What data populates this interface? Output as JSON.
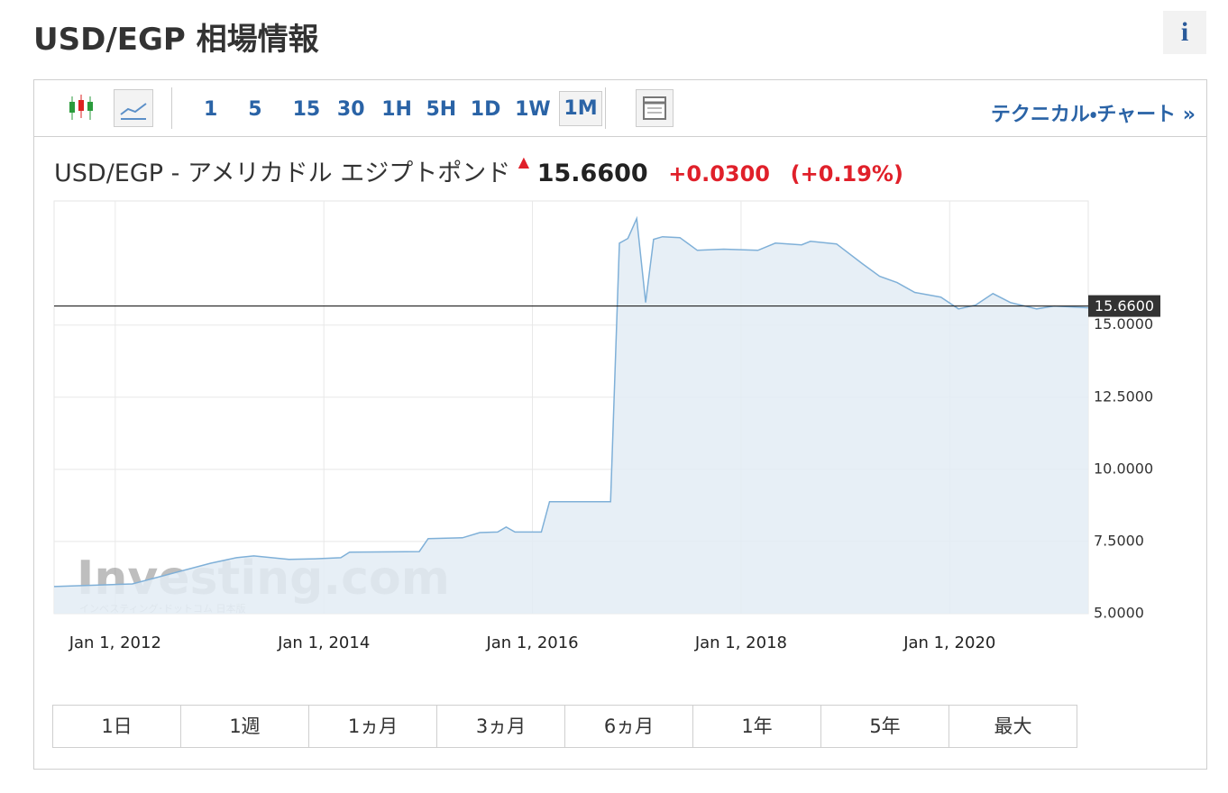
{
  "header": {
    "title": "USD/EGP 相場情報",
    "info": "i"
  },
  "toolbar": {
    "intervals": [
      "1",
      "5",
      "15",
      "30",
      "1H",
      "5H",
      "1D",
      "1W",
      "1M"
    ],
    "active_interval": "1M",
    "link": "テクニカル・チャート »"
  },
  "quote": {
    "name": "USD/EGP - アメリカドル エジプトポンド",
    "price": "15.6600",
    "change": "+0.0300",
    "change_pct": "(+0.19%)"
  },
  "watermark": {
    "brand": "Investing.com",
    "tagline": "インベスティング･ドットコム 日本版"
  },
  "chart_data": {
    "type": "area",
    "x": [
      "2011-06-01",
      "2012-03-01",
      "2012-12-01",
      "2013-03-01",
      "2013-05-01",
      "2013-09-01",
      "2013-12-01",
      "2014-03-01",
      "2014-04-01",
      "2014-12-01",
      "2015-01-01",
      "2015-05-01",
      "2015-07-01",
      "2015-09-01",
      "2015-10-01",
      "2015-11-01",
      "2016-02-01",
      "2016-03-01",
      "2016-10-01",
      "2016-11-01",
      "2016-12-01",
      "2017-01-01",
      "2017-02-01",
      "2017-03-01",
      "2017-04-01",
      "2017-06-01",
      "2017-08-01",
      "2017-11-01",
      "2018-03-01",
      "2018-05-01",
      "2018-08-01",
      "2018-09-01",
      "2018-12-01",
      "2019-03-01",
      "2019-05-01",
      "2019-07-01",
      "2019-09-01",
      "2019-12-01",
      "2020-02-01",
      "2020-04-01",
      "2020-06-01",
      "2020-08-01",
      "2020-11-01",
      "2021-01-01",
      "2021-05-01"
    ],
    "values": [
      5.94,
      6.03,
      6.75,
      6.94,
      7.0,
      6.88,
      6.9,
      6.94,
      7.13,
      7.15,
      7.6,
      7.63,
      7.81,
      7.83,
      8.0,
      7.83,
      7.83,
      8.88,
      8.88,
      17.84,
      18.0,
      18.69,
      15.78,
      17.97,
      18.06,
      18.03,
      17.59,
      17.63,
      17.59,
      17.84,
      17.78,
      17.9,
      17.81,
      17.13,
      16.69,
      16.47,
      16.13,
      15.97,
      15.56,
      15.69,
      16.09,
      15.78,
      15.56,
      15.66,
      15.6
    ],
    "color": "#7fb0d8",
    "fill": "#e3ecf4",
    "xlim": [
      "2011-06-01",
      "2021-05-01"
    ],
    "xticks": [
      {
        "value": "2012-01-01",
        "label": "Jan 1, 2012"
      },
      {
        "value": "2014-01-01",
        "label": "Jan 1, 2014"
      },
      {
        "value": "2016-01-01",
        "label": "Jan 1, 2016"
      },
      {
        "value": "2018-01-01",
        "label": "Jan 1, 2018"
      },
      {
        "value": "2020-01-01",
        "label": "Jan 1, 2020"
      }
    ],
    "ylim": [
      5,
      19.3
    ],
    "yticks": [
      {
        "value": 5,
        "label": "5.0000"
      },
      {
        "value": 7.5,
        "label": "7.5000"
      },
      {
        "value": 10,
        "label": "10.0000"
      },
      {
        "value": 12.5,
        "label": "12.5000"
      },
      {
        "value": 15,
        "label": "15.0000"
      }
    ],
    "price_line": {
      "value": 15.66,
      "label": "15.6600"
    },
    "grid": true
  },
  "ranges": [
    "1日",
    "1週",
    "1ヵ月",
    "3ヵ月",
    "6ヵ月",
    "1年",
    "5年",
    "最大"
  ]
}
